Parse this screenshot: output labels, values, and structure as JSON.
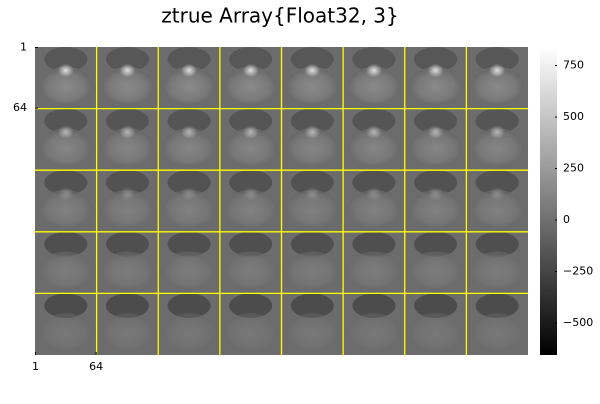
{
  "chart_data": {
    "type": "heatmap",
    "title": "ztrue Array{Float32, 3}",
    "xlim": [
      0.5,
      512.5
    ],
    "xticks": [
      1,
      64
    ],
    "ylim": [
      0.5,
      320.5
    ],
    "yticks": [
      1,
      64
    ],
    "clim": [
      -655,
      840
    ],
    "cticks": [
      {
        "value": -500,
        "label": "−500"
      },
      {
        "value": -250,
        "label": "−250"
      },
      0,
      250,
      500,
      750
    ],
    "colormap": [
      "#000000",
      "#ffffff"
    ],
    "grid_color": "#ffff00"
  }
}
